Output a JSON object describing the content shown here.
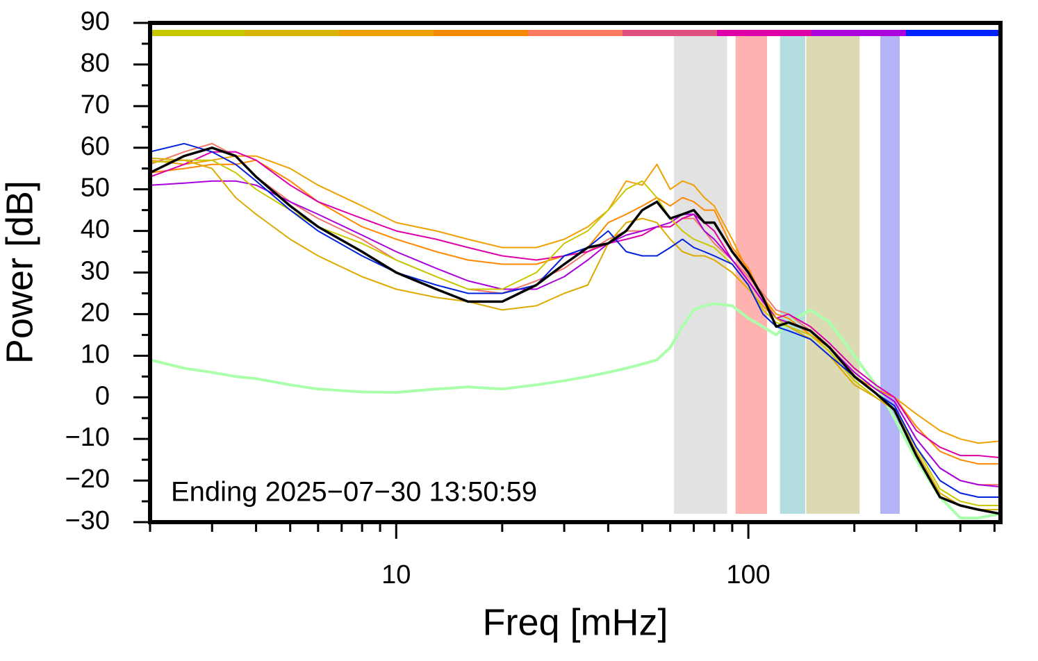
{
  "chart_data": {
    "type": "line",
    "xlabel": "Freq [mHz]",
    "ylabel": "Power [dB]",
    "annotation": "Ending 2025−07−30 13:50:59",
    "xscale": "log",
    "xlim": [
      2,
      520
    ],
    "ylim": [
      -30,
      90
    ],
    "xticks": [
      10,
      100
    ],
    "xminor": [
      2,
      3,
      4,
      5,
      6,
      7,
      8,
      9,
      20,
      30,
      40,
      50,
      60,
      70,
      80,
      90,
      200,
      300,
      400,
      500
    ],
    "yticks": [
      {
        "value": -30,
        "label": "−30"
      },
      {
        "value": -20,
        "label": "−20"
      },
      {
        "value": -10,
        "label": "−10"
      },
      0,
      10,
      20,
      30,
      40,
      50,
      60,
      70,
      80,
      90
    ],
    "yminor": [
      -25,
      -15,
      -5,
      5,
      15,
      25,
      35,
      45,
      55,
      65,
      75,
      85
    ],
    "top_bar_colors": [
      "#c8c800",
      "#d8b400",
      "#eea000",
      "#f58a00",
      "#ff7a60",
      "#dd5080",
      "#dd00aa",
      "#aa00dd",
      "#0022ff"
    ],
    "bands": [
      {
        "xlim": [
          61.5,
          87
        ],
        "color": "#e2e2e2"
      },
      {
        "xlim": [
          92,
          113
        ],
        "color": "#ffb3b0"
      },
      {
        "xlim": [
          123,
          145
        ],
        "color": "#b3dde0"
      },
      {
        "xlim": [
          146,
          207
        ],
        "color": "#dcdab2"
      },
      {
        "xlim": [
          237,
          269
        ],
        "color": "#b3b3f8"
      }
    ],
    "x": [
      2,
      2.5,
      3,
      3.5,
      4,
      5,
      6,
      8,
      10,
      13,
      16,
      20,
      25,
      30,
      35,
      40,
      45,
      50,
      55,
      60,
      65,
      70,
      75,
      80,
      90,
      100,
      110,
      120,
      130,
      150,
      170,
      200,
      230,
      260,
      300,
      350,
      400,
      450,
      520
    ],
    "series": [
      {
        "color": "#aaffaa",
        "width": 4,
        "values": [
          9,
          7,
          6,
          5,
          4.5,
          3,
          2,
          1.3,
          1.2,
          2,
          2.5,
          2,
          3,
          4,
          5,
          6,
          7,
          8,
          9,
          12,
          17,
          21,
          22,
          22.5,
          22,
          19,
          17,
          15,
          18,
          21,
          18,
          10,
          3,
          -5,
          -15,
          -24,
          -29,
          -29,
          -28
        ]
      },
      {
        "color": "#f0a000",
        "width": 2,
        "values": [
          57,
          56,
          57,
          58,
          58,
          55,
          51,
          46,
          42,
          40,
          38,
          36,
          36,
          38,
          41,
          45,
          52,
          51,
          56,
          50,
          52,
          51,
          48,
          46,
          38,
          30,
          24,
          19,
          18,
          16,
          12,
          5,
          2,
          0,
          -4,
          -8,
          -10,
          -11,
          -10.5
        ]
      },
      {
        "color": "#ff8800",
        "width": 2,
        "values": [
          54,
          55,
          56,
          56,
          57,
          52,
          47,
          41,
          38,
          35,
          33,
          32,
          32,
          34,
          36,
          42,
          44,
          46,
          48,
          46,
          48,
          47,
          45,
          45,
          36,
          31,
          24,
          20,
          19,
          15,
          12,
          6,
          2,
          0,
          -7,
          -13,
          -15,
          -16,
          -16
        ]
      },
      {
        "color": "#f07868",
        "width": 2,
        "values": [
          56,
          59,
          61,
          58,
          53,
          47,
          43,
          38,
          33,
          29,
          26,
          25,
          28,
          31,
          35,
          38,
          40,
          40,
          41,
          41,
          43,
          43,
          40,
          37,
          33,
          29,
          25,
          21,
          20,
          16,
          12,
          6,
          2,
          -1,
          -10,
          -17,
          -20,
          -21,
          -21
        ]
      },
      {
        "color": "#dd00aa",
        "width": 2,
        "values": [
          53,
          56,
          59,
          59,
          57,
          51,
          47,
          43,
          40,
          38,
          36,
          34,
          33,
          34,
          35,
          37,
          38,
          39,
          41,
          41,
          43,
          44,
          42,
          40,
          33,
          28,
          23,
          19,
          20,
          17,
          13,
          7,
          3,
          0,
          -8,
          -12,
          -14,
          -14,
          -14.5
        ]
      },
      {
        "color": "#aa00dd",
        "width": 2,
        "values": [
          51,
          51.5,
          52,
          52,
          51,
          47,
          44,
          39,
          35,
          31,
          28,
          26,
          26,
          29,
          33,
          37,
          39,
          40,
          41,
          42,
          44,
          44,
          40,
          38,
          33,
          28,
          23,
          19,
          18,
          16,
          12,
          6,
          2,
          -1,
          -10,
          -17,
          -20,
          -21,
          -21.5
        ]
      },
      {
        "color": "#c8c800",
        "width": 2,
        "values": [
          56.5,
          57,
          57,
          54,
          50,
          45,
          41,
          37,
          33,
          29,
          26,
          26,
          30,
          37,
          40,
          45,
          50,
          52,
          48,
          43,
          40,
          38,
          37,
          36,
          32,
          27,
          21,
          18,
          17,
          15,
          11,
          4,
          0,
          -3,
          -12,
          -22,
          -25,
          -26,
          -26
        ]
      },
      {
        "color": "#ddaa00",
        "width": 2,
        "values": [
          57.5,
          57,
          55,
          48,
          44,
          38,
          34,
          29,
          26,
          24,
          23,
          21,
          22,
          25,
          27,
          37,
          42,
          43,
          42,
          38,
          35,
          34,
          34,
          33,
          30,
          26,
          22,
          19,
          17,
          14,
          10,
          3,
          0,
          -3,
          -13,
          -23,
          -26,
          -27,
          -27
        ]
      },
      {
        "color": "#0022dd",
        "width": 2,
        "values": [
          59,
          61,
          59,
          56,
          52,
          45,
          40,
          34,
          30,
          27,
          25,
          25,
          27,
          34,
          36,
          40,
          35,
          34,
          34,
          36,
          38,
          36,
          35,
          34,
          32,
          27,
          20,
          17,
          16,
          14,
          10,
          5,
          1,
          -2,
          -12,
          -20,
          -23,
          -24,
          -24
        ]
      },
      {
        "color": "#000000",
        "width": 3.5,
        "values": [
          54,
          58,
          60,
          58,
          53,
          46,
          41,
          35,
          30,
          26,
          23,
          23,
          27,
          32,
          36,
          37,
          40,
          45,
          47,
          43,
          44,
          45,
          42,
          42,
          35,
          30,
          24,
          17,
          18,
          16,
          12,
          5,
          1,
          -3,
          -14,
          -24,
          -26,
          -27,
          -28
        ]
      }
    ]
  }
}
